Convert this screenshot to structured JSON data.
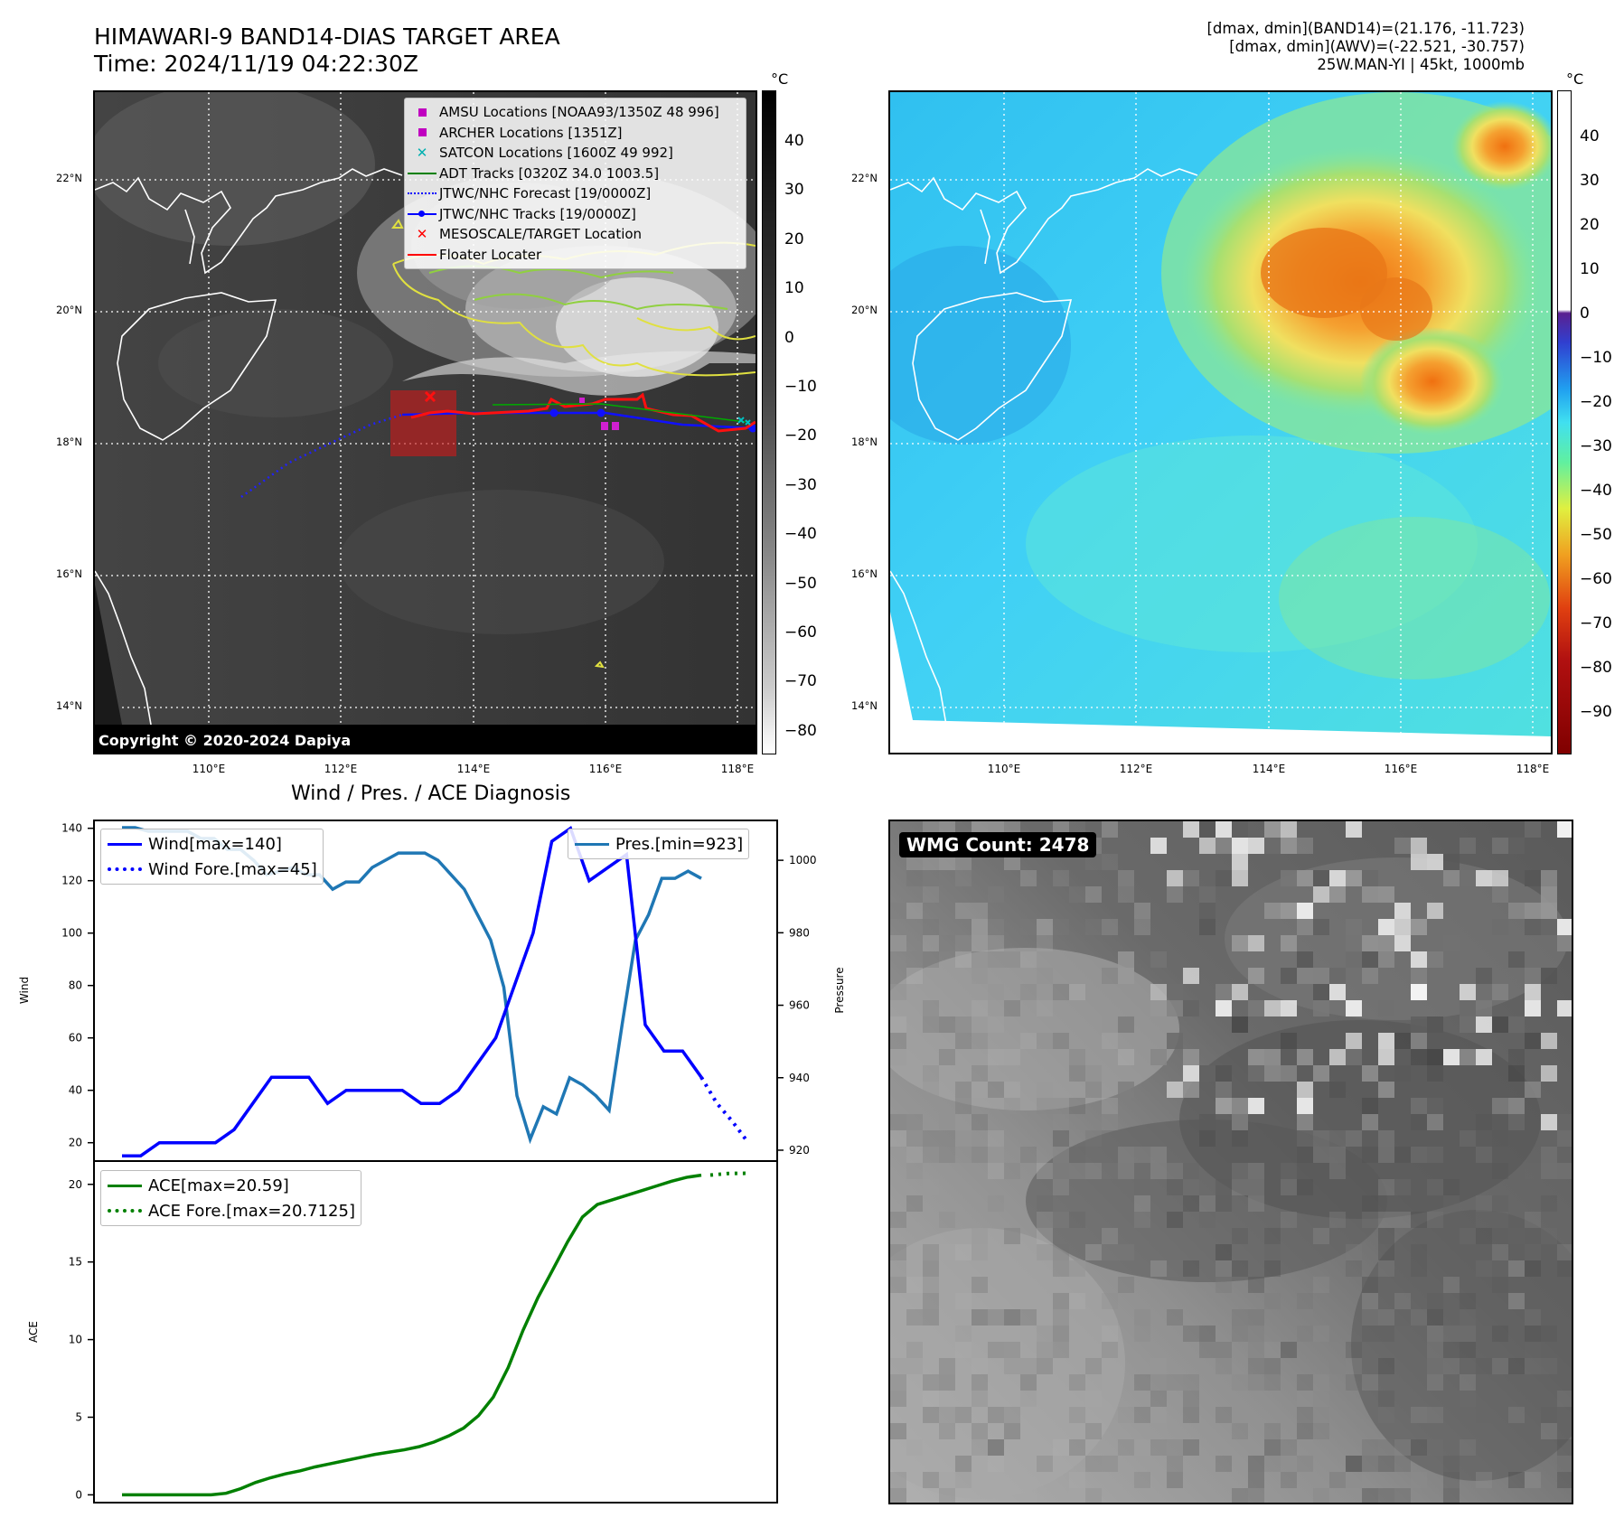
{
  "header": {
    "title_line1": "HIMAWARI-9 BAND14-DIAS TARGET AREA",
    "title_line2": "Time: 2024/11/19 04:22:30Z",
    "info_line1": "[dmax, dmin](BAND14)=(21.176, -11.723)",
    "info_line2": "[dmax, dmin](AWV)=(-22.521, -30.757)",
    "info_line3": "25W.MAN-YI | 45kt, 1000mb"
  },
  "map_axes": {
    "lat_labels": [
      "22°N",
      "20°N",
      "18°N",
      "16°N",
      "14°N"
    ],
    "lon_labels": [
      "110°E",
      "112°E",
      "114°E",
      "116°E",
      "118°E"
    ]
  },
  "ir_panel": {
    "colorbar_unit": "°C",
    "colorbar_ticks": [
      "40",
      "30",
      "20",
      "10",
      "0",
      "−10",
      "−20",
      "−30",
      "−40",
      "−50",
      "−60",
      "−70",
      "−80"
    ],
    "copyright": "Copyright © 2020-2024 Dapiya",
    "legend": [
      {
        "label": "AMSU Locations [NOAA93/1350Z 48 996]",
        "symbol": "square",
        "color": "#c000c0"
      },
      {
        "label": "ARCHER Locations [1351Z]",
        "symbol": "square",
        "color": "#c000c0"
      },
      {
        "label": "SATCON Locations [1600Z 49 992]",
        "symbol": "x",
        "color": "#00b0b0"
      },
      {
        "label": "ADT Tracks [0320Z 34.0 1003.5]",
        "symbol": "line",
        "color": "#008000"
      },
      {
        "label": "JTWC/NHC Forecast [19/0000Z]",
        "symbol": "dotted",
        "color": "#0000ff"
      },
      {
        "label": "JTWC/NHC Tracks [19/0000Z]",
        "symbol": "line-dot",
        "color": "#0000ff"
      },
      {
        "label": "MESOSCALE/TARGET Location",
        "symbol": "x",
        "color": "#ff0000"
      },
      {
        "label": "Floater Locater",
        "symbol": "line",
        "color": "#ff0000"
      }
    ]
  },
  "wv_panel": {
    "colorbar_unit": "°C",
    "colorbar_ticks": [
      "40",
      "30",
      "20",
      "10",
      "0",
      "−10",
      "−20",
      "−30",
      "−40",
      "−50",
      "−60",
      "−70",
      "−80",
      "−90"
    ]
  },
  "diag": {
    "title": "Wind / Pres. / ACE Diagnosis",
    "wind_axis_label": "Wind",
    "pres_axis_label": "Pressure",
    "ace_axis_label": "ACE",
    "wind_ticks": [
      "140",
      "120",
      "100",
      "80",
      "60",
      "40",
      "20"
    ],
    "pres_ticks": [
      "1000",
      "980",
      "960",
      "940",
      "920"
    ],
    "ace_ticks": [
      "20",
      "15",
      "10",
      "5",
      "0"
    ],
    "legend_wind": "Wind[max=140]",
    "legend_wind_fore": "Wind Fore.[max=45]",
    "legend_pres": "Pres.[min=923]",
    "legend_ace": "ACE[max=20.59]",
    "legend_ace_fore": "ACE Fore.[max=20.7125]"
  },
  "wmg": {
    "count_label": "WMG Count: 2478"
  },
  "chart_data": [
    {
      "type": "line",
      "title": "Wind / Pres. / ACE Diagnosis",
      "ylabel": "Wind",
      "ylim": [
        13,
        143
      ],
      "series": [
        {
          "name": "Wind[max=140]",
          "values": [
            15,
            15,
            20,
            20,
            20,
            20,
            25,
            35,
            45,
            45,
            45,
            35,
            40,
            40,
            40,
            40,
            35,
            35,
            40,
            50,
            60,
            80,
            100,
            135,
            140,
            120,
            125,
            130,
            65,
            55,
            55,
            45
          ]
        },
        {
          "name": "Wind Fore.[max=45]",
          "values": [
            45,
            35,
            28,
            20
          ]
        }
      ]
    },
    {
      "type": "line",
      "ylabel": "Pressure",
      "ylim": [
        917,
        1011
      ],
      "series": [
        {
          "name": "Pres.[min=923]",
          "values": [
            1009,
            1009,
            1008,
            1008,
            1008,
            1008,
            1006,
            1006,
            1003,
            1003,
            1000,
            996,
            997,
            998,
            996,
            996,
            992,
            994,
            994,
            998,
            1000,
            1002,
            1002,
            1002,
            1000,
            996,
            992,
            985,
            978,
            965,
            935,
            923,
            932,
            930,
            940,
            938,
            935,
            931,
            955,
            978,
            985,
            995,
            995,
            997,
            995
          ]
        }
      ]
    },
    {
      "type": "line",
      "ylabel": "ACE",
      "ylim": [
        -0.5,
        21.5
      ],
      "series": [
        {
          "name": "ACE[max=20.59]",
          "values": [
            0,
            0,
            0,
            0,
            0,
            0,
            0,
            0.1,
            0.4,
            0.8,
            1.1,
            1.35,
            1.55,
            1.8,
            2.0,
            2.2,
            2.4,
            2.6,
            2.75,
            2.9,
            3.1,
            3.4,
            3.8,
            4.3,
            5.1,
            6.3,
            8.2,
            10.6,
            12.7,
            14.5,
            16.3,
            17.9,
            18.7,
            19.0,
            19.3,
            19.6,
            19.9,
            20.2,
            20.45,
            20.59
          ]
        },
        {
          "name": "ACE Fore.[max=20.7125]",
          "values": [
            20.6,
            20.7,
            20.7125
          ]
        }
      ]
    }
  ]
}
